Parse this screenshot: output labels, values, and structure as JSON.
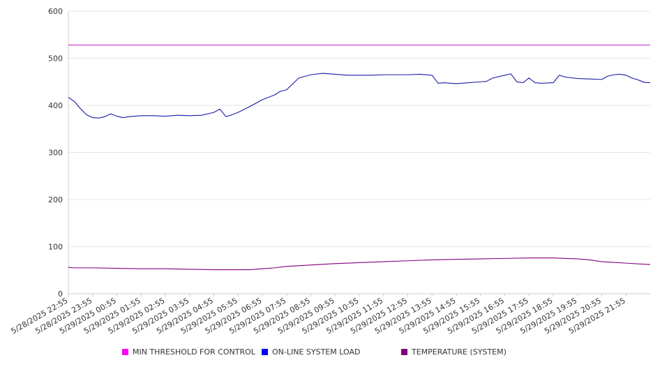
{
  "chart_data": {
    "type": "line",
    "title": "",
    "xlabel": "",
    "ylabel": "",
    "ylim": [
      0,
      600
    ],
    "y_ticks": [
      0,
      100,
      200,
      300,
      400,
      500,
      600
    ],
    "x_range": [
      "5/28/2025 22:55",
      "5/29/2025 22:55"
    ],
    "x_tick_labels": [
      "5/28/2025 22:55",
      "5/28/2025 23:55",
      "5/29/2025 00:55",
      "5/29/2025 01:55",
      "5/29/2025 02:55",
      "5/29/2025 03:55",
      "5/29/2025 04:55",
      "5/29/2025 05:55",
      "5/29/2025 06:55",
      "5/29/2025 07:55",
      "5/29/2025 08:55",
      "5/29/2025 09:55",
      "5/29/2025 10:55",
      "5/29/2025 11:55",
      "5/29/2025 12:55",
      "5/29/2025 13:55",
      "5/29/2025 14:55",
      "5/29/2025 15:55",
      "5/29/2025 16:55",
      "5/29/2025 17:55",
      "5/29/2025 18:55",
      "5/29/2025 19:55",
      "5/29/2025 20:55",
      "5/29/2025 21:55"
    ],
    "grid": true,
    "legend_position": "bottom",
    "series": [
      {
        "name": "MIN THRESHOLD FOR CONTROL",
        "color": "#cc33cc",
        "legend_color": "#ff00ff",
        "x": [
          "5/28/2025 22:55",
          "5/29/2025 22:55"
        ],
        "values": [
          528,
          528
        ]
      },
      {
        "name": "ON-LINE SYSTEM LOAD",
        "color": "#1a1aaa",
        "legend_color": "#0000ff",
        "x": [
          "5/28/2025 22:55",
          "5/28/2025 23:10",
          "5/28/2025 23:25",
          "5/28/2025 23:40",
          "5/28/2025 23:55",
          "5/29/2025 00:10",
          "5/29/2025 00:25",
          "5/29/2025 00:40",
          "5/29/2025 00:55",
          "5/29/2025 01:10",
          "5/29/2025 01:25",
          "5/29/2025 01:55",
          "5/29/2025 02:25",
          "5/29/2025 02:55",
          "5/29/2025 03:25",
          "5/29/2025 03:55",
          "5/29/2025 04:25",
          "5/29/2025 04:55",
          "5/29/2025 05:10",
          "5/29/2025 05:25",
          "5/29/2025 05:40",
          "5/29/2025 05:55",
          "5/29/2025 06:25",
          "5/29/2025 06:55",
          "5/29/2025 07:25",
          "5/29/2025 07:40",
          "5/29/2025 07:55",
          "5/29/2025 08:25",
          "5/29/2025 08:55",
          "5/29/2025 09:25",
          "5/29/2025 09:55",
          "5/29/2025 10:25",
          "5/29/2025 10:55",
          "5/29/2025 11:25",
          "5/29/2025 11:55",
          "5/29/2025 12:25",
          "5/29/2025 12:55",
          "5/29/2025 13:25",
          "5/29/2025 13:55",
          "5/29/2025 14:10",
          "5/29/2025 14:25",
          "5/29/2025 14:55",
          "5/29/2025 15:25",
          "5/29/2025 15:55",
          "5/29/2025 16:10",
          "5/29/2025 16:25",
          "5/29/2025 16:55",
          "5/29/2025 17:10",
          "5/29/2025 17:25",
          "5/29/2025 17:40",
          "5/29/2025 17:55",
          "5/29/2025 18:10",
          "5/29/2025 18:25",
          "5/29/2025 18:55",
          "5/29/2025 19:10",
          "5/29/2025 19:25",
          "5/29/2025 19:55",
          "5/29/2025 20:25",
          "5/29/2025 20:55",
          "5/29/2025 21:10",
          "5/29/2025 21:25",
          "5/29/2025 21:40",
          "5/29/2025 21:55",
          "5/29/2025 22:10",
          "5/29/2025 22:25",
          "5/29/2025 22:40",
          "5/29/2025 22:55"
        ],
        "values": [
          417,
          408,
          393,
          380,
          374,
          373,
          376,
          382,
          377,
          374,
          376,
          378,
          378,
          377,
          379,
          378,
          379,
          385,
          392,
          376,
          380,
          385,
          398,
          412,
          422,
          430,
          433,
          458,
          465,
          468,
          466,
          464,
          464,
          464,
          465,
          465,
          465,
          466,
          464,
          447,
          448,
          446,
          448,
          450,
          451,
          458,
          464,
          467,
          450,
          448,
          458,
          448,
          447,
          448,
          464,
          460,
          457,
          456,
          455,
          462,
          465,
          466,
          464,
          458,
          454,
          449,
          448
        ]
      },
      {
        "name": "TEMPERATURE (SYSTEM)",
        "color": "#800080",
        "legend_color": "#800080",
        "x": [
          "5/28/2025 22:55",
          "5/28/2025 23:10",
          "5/28/2025 23:55",
          "5/29/2025 00:55",
          "5/29/2025 01:55",
          "5/29/2025 02:55",
          "5/29/2025 03:55",
          "5/29/2025 04:55",
          "5/29/2025 05:55",
          "5/29/2025 06:25",
          "5/29/2025 06:55",
          "5/29/2025 07:25",
          "5/29/2025 07:55",
          "5/29/2025 08:55",
          "5/29/2025 09:55",
          "5/29/2025 10:55",
          "5/29/2025 11:55",
          "5/29/2025 12:55",
          "5/29/2025 13:55",
          "5/29/2025 14:55",
          "5/29/2025 15:55",
          "5/29/2025 16:55",
          "5/29/2025 17:55",
          "5/29/2025 18:55",
          "5/29/2025 19:55",
          "5/29/2025 20:25",
          "5/29/2025 20:55",
          "5/29/2025 21:55",
          "5/29/2025 22:55"
        ],
        "values": [
          56,
          55,
          55,
          54,
          53,
          53,
          52,
          51,
          51,
          51,
          53,
          55,
          58,
          61,
          64,
          66,
          68,
          70,
          72,
          73,
          74,
          75,
          76,
          76,
          74,
          72,
          68,
          65,
          62
        ]
      }
    ]
  }
}
